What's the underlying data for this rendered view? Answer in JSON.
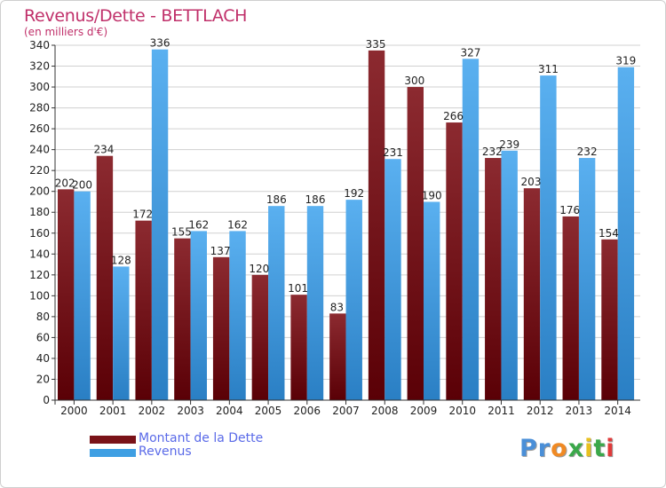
{
  "title": "Revenus/Dette - BETTLACH",
  "subtitle": "(en milliers d'€)",
  "colors": {
    "debt": "#8a1a22",
    "revenue": "#3f9fe3",
    "title": "#c0306a",
    "legend_text": "#5a6ae8"
  },
  "legend": {
    "items": [
      {
        "label": "Montant de la Dette",
        "color": "#7a1218"
      },
      {
        "label": "Revenus",
        "color": "#3f9fe3"
      }
    ]
  },
  "logo": {
    "letters": [
      "P",
      "r",
      "o",
      "x",
      "i",
      "t",
      "i"
    ],
    "colors": [
      "#4a8fd8",
      "#4a8fd8",
      "#f08a24",
      "#3aa84a",
      "#e8c020",
      "#3aa84a",
      "#e03a3a"
    ]
  },
  "chart_data": {
    "type": "bar",
    "categories": [
      "2000",
      "2001",
      "2002",
      "2003",
      "2004",
      "2005",
      "2006",
      "2007",
      "2008",
      "2009",
      "2010",
      "2011",
      "2012",
      "2013",
      "2014"
    ],
    "series": [
      {
        "name": "Montant de la Dette",
        "values": [
          202,
          234,
          172,
          155,
          137,
          120,
          101,
          83,
          335,
          300,
          266,
          232,
          203,
          176,
          154
        ]
      },
      {
        "name": "Revenus",
        "values": [
          200,
          128,
          336,
          162,
          162,
          186,
          186,
          192,
          231,
          190,
          327,
          239,
          311,
          232,
          319
        ]
      }
    ],
    "yticks": [
      0,
      20,
      40,
      60,
      80,
      100,
      120,
      140,
      160,
      180,
      200,
      220,
      240,
      260,
      280,
      300,
      320,
      340
    ],
    "ylim": [
      0,
      340
    ],
    "grid": true,
    "legend_position": "bottom-left"
  }
}
